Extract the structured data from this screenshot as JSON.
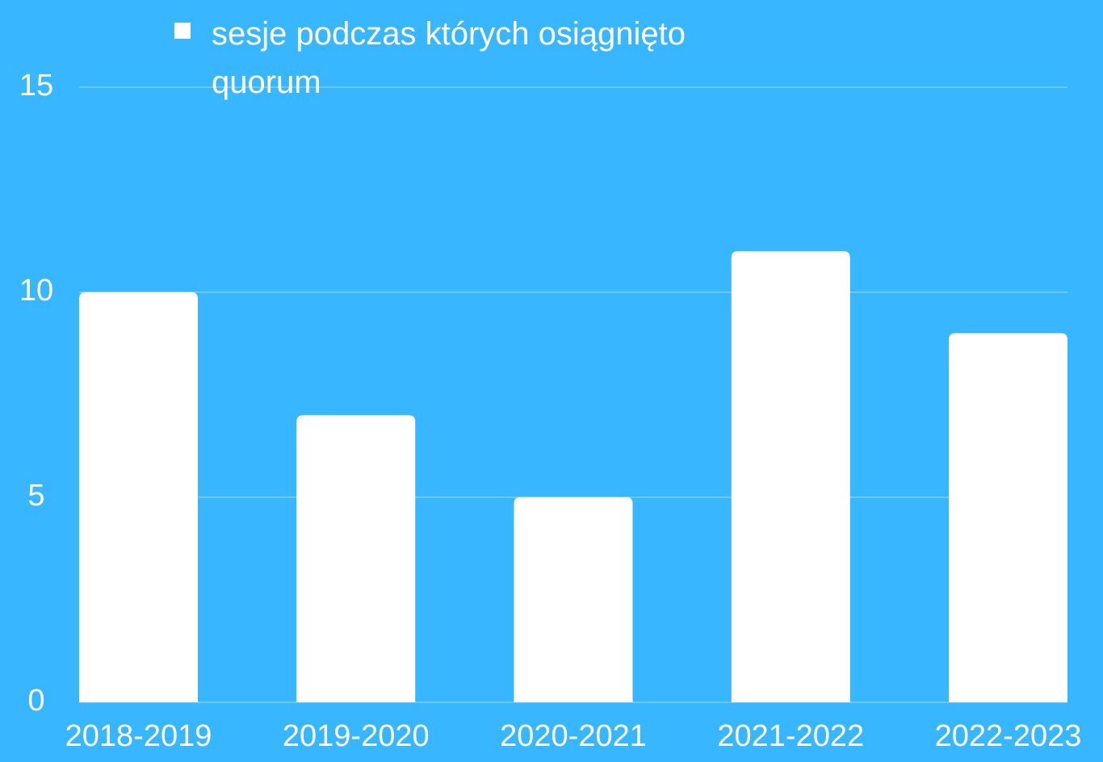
{
  "chart_data": {
    "type": "bar",
    "categories": [
      "2018-2019",
      "2019-2020",
      "2020-2021",
      "2021-2022",
      "2022-2023"
    ],
    "series": [
      {
        "name": "sesje podczas których osiągnięto quorum",
        "color": "#ffffff",
        "values": [
          10,
          7,
          5,
          11,
          9
        ]
      }
    ],
    "ylim": [
      0,
      15
    ],
    "yticks": [
      0,
      5,
      10,
      15
    ],
    "grid": true
  }
}
